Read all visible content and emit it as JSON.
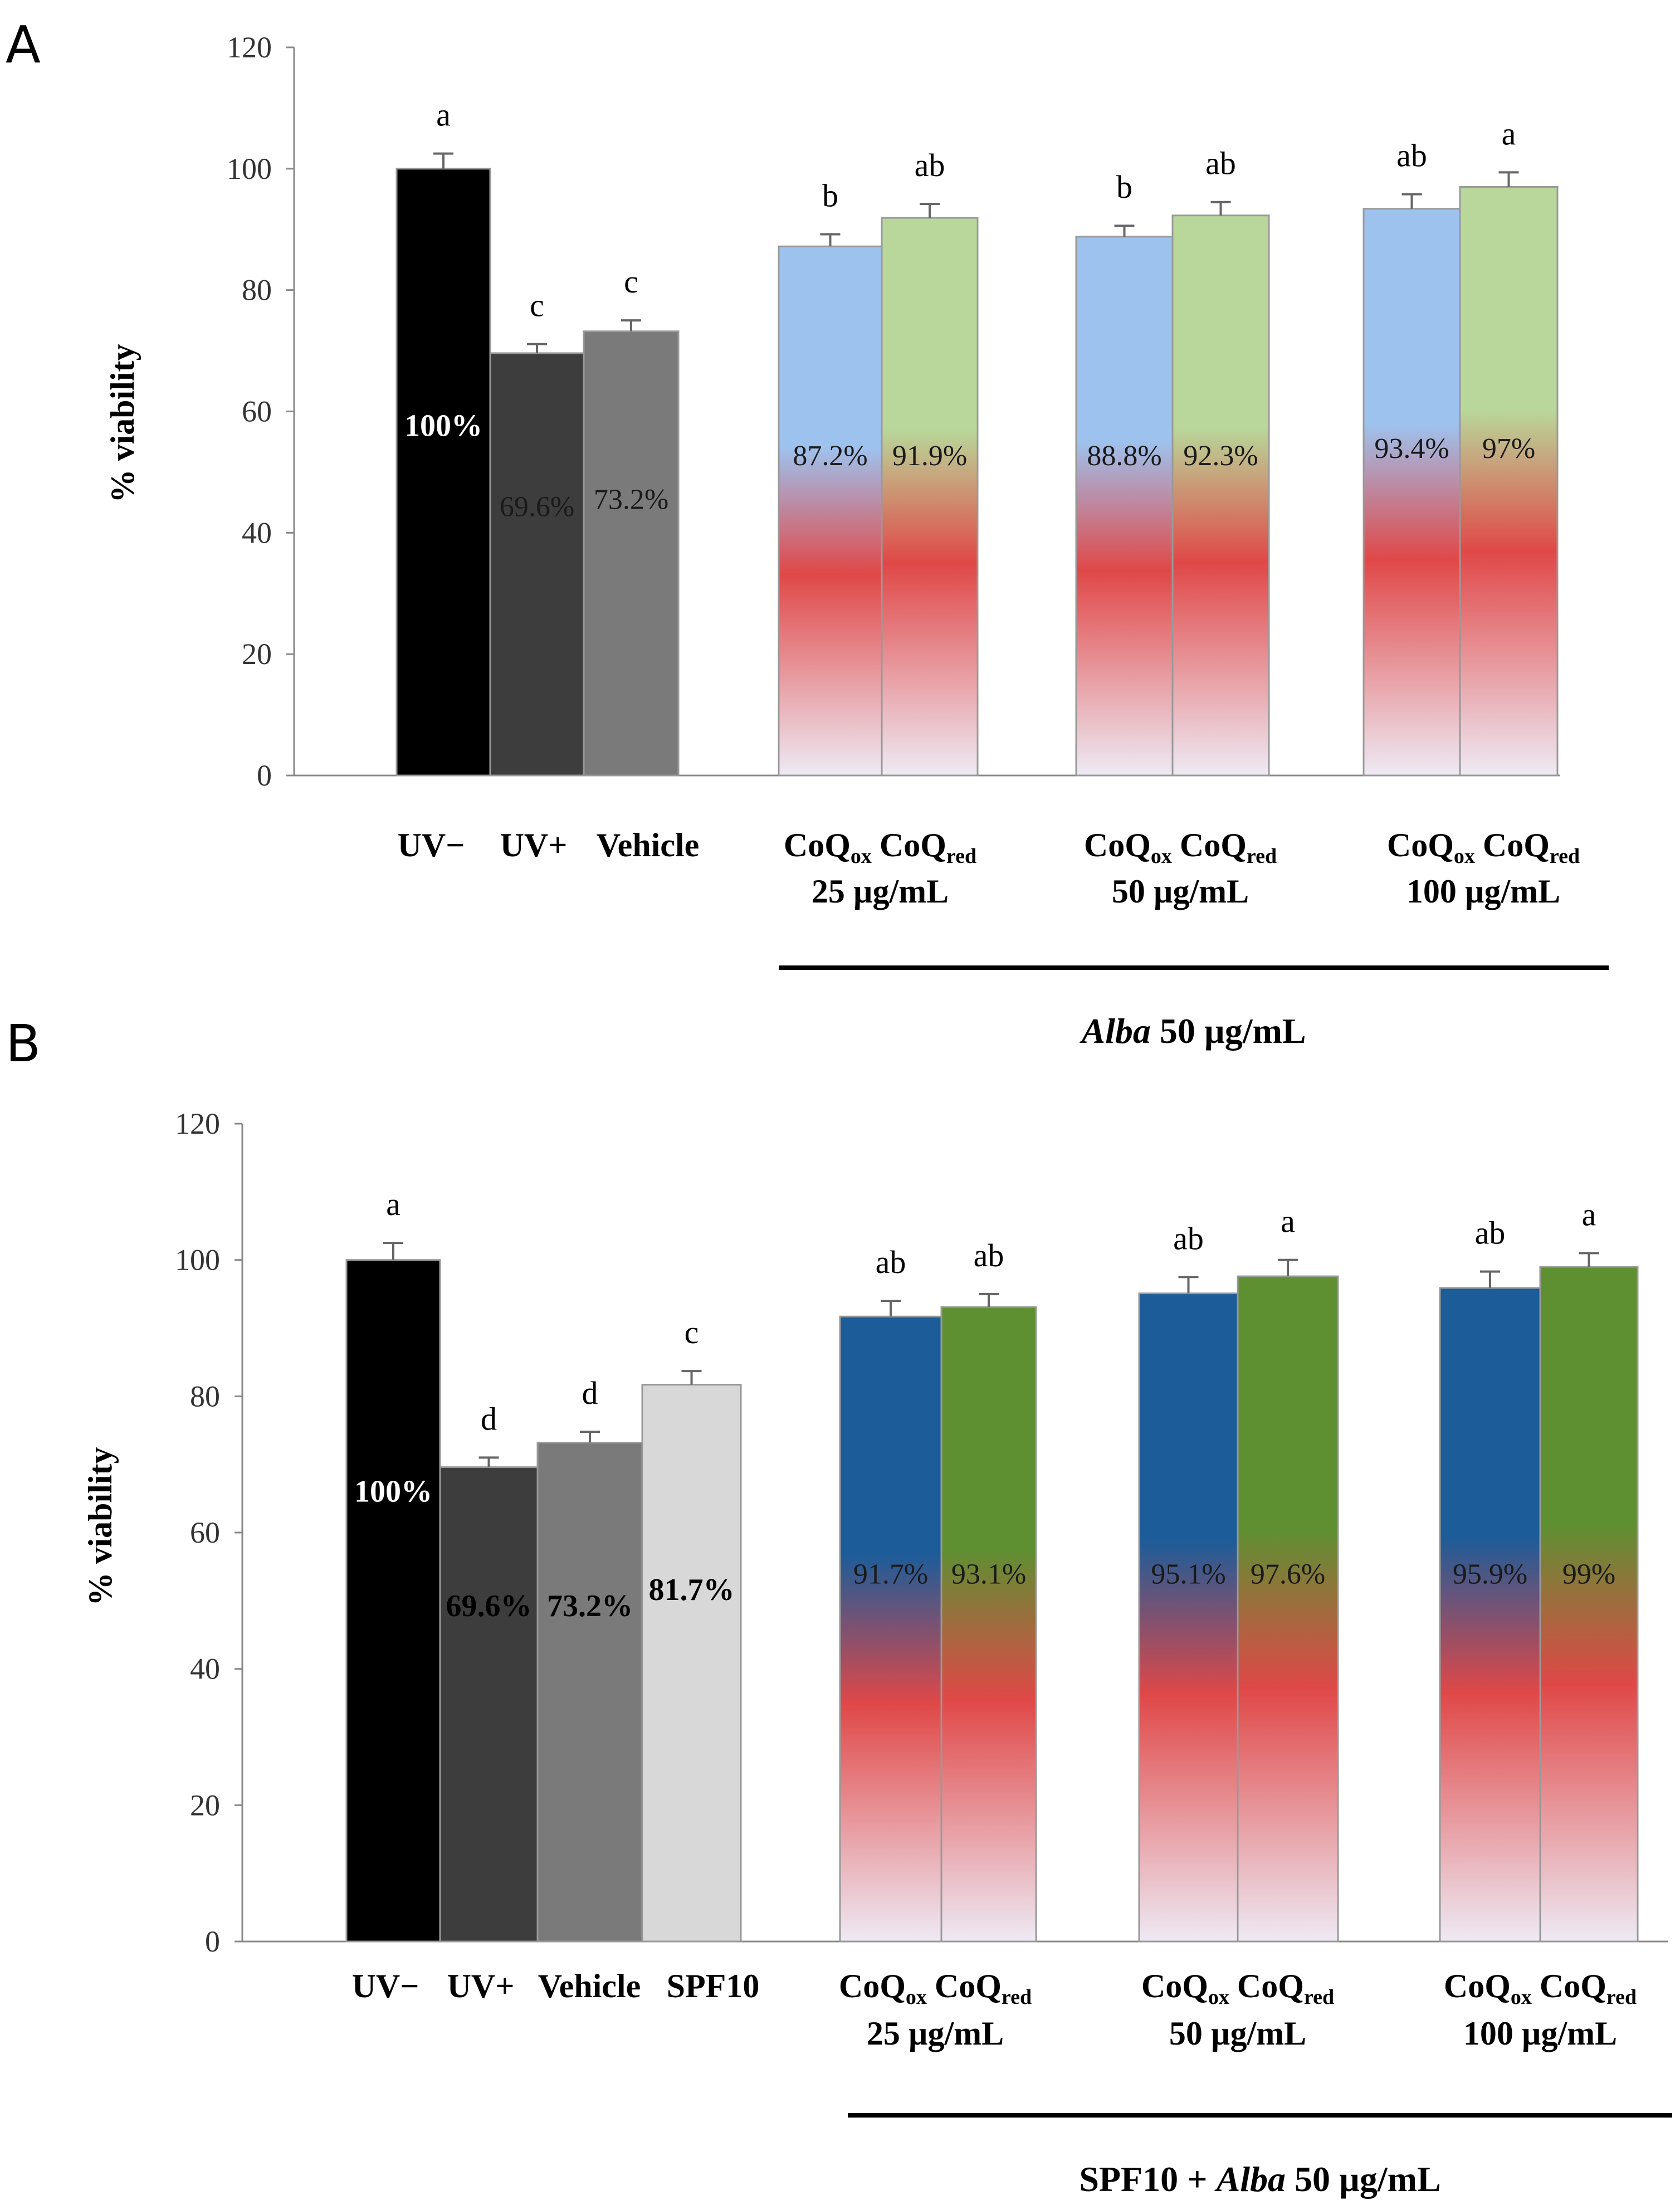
{
  "chart_data": [
    {
      "panel": "A",
      "type": "bar",
      "ylabel": "% viability",
      "ylim": [
        0,
        120
      ],
      "yticks": [
        "0",
        "20",
        "40",
        "60",
        "80",
        "100",
        "120"
      ],
      "bars": [
        {
          "category": "UV−",
          "value": 100,
          "error": 2.5,
          "label": "100%",
          "sig": "a",
          "style": "black"
        },
        {
          "category": "UV+",
          "value": 69.6,
          "error": 1.5,
          "label": "69.6%",
          "sig": "c",
          "style": "darkgray"
        },
        {
          "category": "Vehicle",
          "value": 73.2,
          "error": 1.8,
          "label": "73.2%",
          "sig": "c",
          "style": "gray"
        },
        {
          "category": "CoQox",
          "dose": "25 µg/mL",
          "value": 87.2,
          "error": 2.0,
          "label": "87.2%",
          "sig": "b",
          "style": "lightblue"
        },
        {
          "category": "CoQred",
          "dose": "25 µg/mL",
          "value": 91.9,
          "error": 2.3,
          "label": "91.9%",
          "sig": "ab",
          "style": "lightgreen"
        },
        {
          "category": "CoQox",
          "dose": "50 µg/mL",
          "value": 88.8,
          "error": 1.8,
          "label": "88.8%",
          "sig": "b",
          "style": "lightblue"
        },
        {
          "category": "CoQred",
          "dose": "50 µg/mL",
          "value": 92.3,
          "error": 2.2,
          "label": "92.3%",
          "sig": "ab",
          "style": "lightgreen"
        },
        {
          "category": "CoQox",
          "dose": "100 µg/mL",
          "value": 93.4,
          "error": 2.4,
          "label": "93.4%",
          "sig": "ab",
          "style": "lightblue"
        },
        {
          "category": "CoQred",
          "dose": "100 µg/mL",
          "value": 97,
          "error": 2.4,
          "label": "97%",
          "sig": "a",
          "style": "lightgreen"
        }
      ],
      "group_labels": [
        {
          "text": "CoQ",
          "sub_ox": "ox",
          "sub_red": "red",
          "dose": "25 µg/mL"
        },
        {
          "text": "CoQ",
          "sub_ox": "ox",
          "sub_red": "red",
          "dose": "50 µg/mL"
        },
        {
          "text": "CoQ",
          "sub_ox": "ox",
          "sub_red": "red",
          "dose": "100 µg/mL"
        }
      ],
      "treatment": {
        "prefix": "",
        "italic": "Alba",
        "suffix": " 50 µg/mL"
      }
    },
    {
      "panel": "B",
      "type": "bar",
      "ylabel": "% viability",
      "ylim": [
        0,
        120
      ],
      "yticks": [
        "0",
        "20",
        "40",
        "60",
        "80",
        "100",
        "120"
      ],
      "bars": [
        {
          "category": "UV−",
          "value": 100,
          "error": 2.5,
          "label": "100%",
          "sig": "a",
          "style": "black"
        },
        {
          "category": "UV+",
          "value": 69.6,
          "error": 1.4,
          "label": "69.6%",
          "sig": "d",
          "style": "darkgray"
        },
        {
          "category": "Vehicle",
          "value": 73.2,
          "error": 1.6,
          "label": "73.2%",
          "sig": "d",
          "style": "gray"
        },
        {
          "category": "SPF10",
          "value": 81.7,
          "error": 2.0,
          "label": "81.7%",
          "sig": "c",
          "style": "lightgray"
        },
        {
          "category": "CoQox",
          "dose": "25 µg/mL",
          "value": 91.7,
          "error": 2.3,
          "label": "91.7%",
          "sig": "ab",
          "style": "blue"
        },
        {
          "category": "CoQred",
          "dose": "25 µg/mL",
          "value": 93.1,
          "error": 1.9,
          "label": "93.1%",
          "sig": "ab",
          "style": "green"
        },
        {
          "category": "CoQox",
          "dose": "50 µg/mL",
          "value": 95.1,
          "error": 2.4,
          "label": "95.1%",
          "sig": "ab",
          "style": "blue"
        },
        {
          "category": "CoQred",
          "dose": "50 µg/mL",
          "value": 97.6,
          "error": 2.4,
          "label": "97.6%",
          "sig": "a",
          "style": "green"
        },
        {
          "category": "CoQox",
          "dose": "100 µg/mL",
          "value": 95.9,
          "error": 2.4,
          "label": "95.9%",
          "sig": "ab",
          "style": "blue"
        },
        {
          "category": "CoQred",
          "dose": "100 µg/mL",
          "value": 99,
          "error": 2.0,
          "label": "99%",
          "sig": "a",
          "style": "green"
        }
      ],
      "group_labels": [
        {
          "text": "CoQ",
          "sub_ox": "ox",
          "sub_red": "red",
          "dose": "25 µg/mL"
        },
        {
          "text": "CoQ",
          "sub_ox": "ox",
          "sub_red": "red",
          "dose": "50 µg/mL"
        },
        {
          "text": "CoQ",
          "sub_ox": "ox",
          "sub_red": "red",
          "dose": "100 µg/mL"
        }
      ],
      "treatment": {
        "prefix": "SPF10 + ",
        "italic": "Alba",
        "suffix": " 50 µg/mL"
      }
    }
  ],
  "colors": {
    "black": "#000000",
    "darkgray": "#3d3d3d",
    "gray": "#7a7a7a",
    "midgray": "#555555",
    "lightgray": "#d8d8d8",
    "lightblue": "#9ec2ee",
    "lightgreen": "#b9d79a",
    "blue": "#1c5c99",
    "green": "#5e9032",
    "red": "#e04848",
    "pale": "#eeeaf4"
  }
}
